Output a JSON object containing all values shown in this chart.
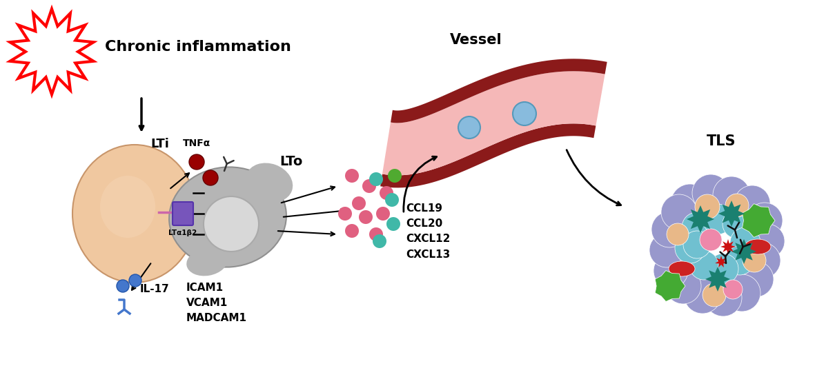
{
  "background_color": "#ffffff",
  "chronic_inflammation_text": "Chronic inflammation",
  "lti_text": "LTi",
  "lto_text": "LTo",
  "vessel_text": "Vessel",
  "tls_text": "TLS",
  "tnfa_text": "TNFα",
  "lta1b2_text": "LTα1β2",
  "il17_text": "IL-17",
  "icam_text": "ICAM1\nVCAM1\nMADCAM1",
  "chemokine_text": "CCL19\nCCL20\nCXCL12\nCXCL13",
  "starburst_color": "#ff0000",
  "lti_cell_color": "#f0c8a0",
  "lto_cell_color": "#b0b0b0",
  "vessel_outer_color": "#8b1a1a",
  "vessel_inner_color": "#f5b8b8",
  "tls_bg_color": "#9090c8"
}
